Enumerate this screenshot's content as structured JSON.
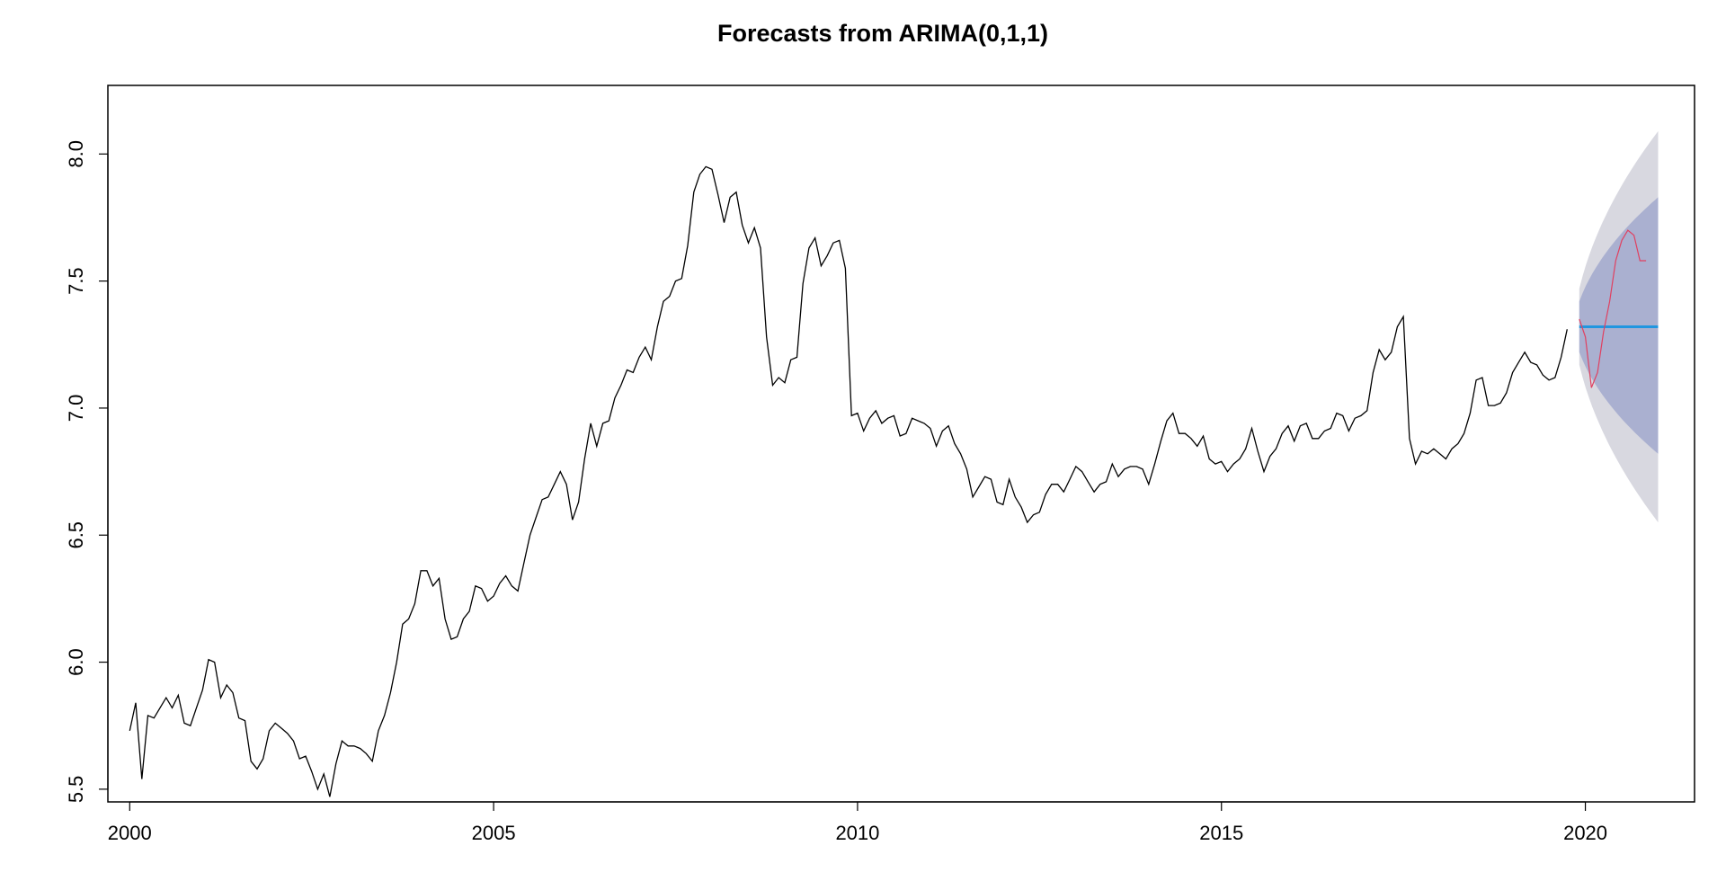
{
  "chart_data": {
    "type": "line",
    "title": "Forecasts from ARIMA(0,1,1)",
    "xlabel": "",
    "ylabel": "",
    "xlim": [
      1999.7,
      2021.5
    ],
    "ylim": [
      5.45,
      8.27
    ],
    "x_ticks": [
      2000,
      2005,
      2010,
      2015,
      2020
    ],
    "x_tick_labels": [
      "2000",
      "2005",
      "2010",
      "2015",
      "2020"
    ],
    "y_ticks": [
      5.5,
      6.0,
      6.5,
      7.0,
      7.5,
      8.0
    ],
    "y_tick_labels": [
      "5.5",
      "6.0",
      "6.5",
      "7.0",
      "7.5",
      "8.0"
    ],
    "grid": false,
    "frequency": 12,
    "series": [
      {
        "role": "observed",
        "color": "#000000",
        "start": 2000.0,
        "values": [
          5.73,
          5.84,
          5.54,
          5.79,
          5.78,
          5.82,
          5.86,
          5.82,
          5.87,
          5.76,
          5.75,
          5.82,
          5.89,
          6.01,
          6.0,
          5.86,
          5.91,
          5.88,
          5.78,
          5.77,
          5.61,
          5.58,
          5.62,
          5.73,
          5.76,
          5.74,
          5.72,
          5.69,
          5.62,
          5.63,
          5.57,
          5.5,
          5.56,
          5.47,
          5.6,
          5.69,
          5.67,
          5.67,
          5.66,
          5.64,
          5.61,
          5.73,
          5.79,
          5.88,
          6.0,
          6.15,
          6.17,
          6.23,
          6.36,
          6.36,
          6.3,
          6.33,
          6.17,
          6.09,
          6.1,
          6.17,
          6.2,
          6.3,
          6.29,
          6.24,
          6.26,
          6.31,
          6.34,
          6.3,
          6.28,
          6.39,
          6.5,
          6.57,
          6.64,
          6.65,
          6.7,
          6.75,
          6.7,
          6.56,
          6.63,
          6.8,
          6.94,
          6.85,
          6.94,
          6.95,
          7.04,
          7.09,
          7.15,
          7.14,
          7.2,
          7.24,
          7.19,
          7.32,
          7.42,
          7.44,
          7.5,
          7.51,
          7.64,
          7.85,
          7.92,
          7.95,
          7.94,
          7.84,
          7.73,
          7.83,
          7.85,
          7.72,
          7.65,
          7.71,
          7.63,
          7.28,
          7.09,
          7.12,
          7.1,
          7.19,
          7.2,
          7.49,
          7.63,
          7.67,
          7.56,
          7.6,
          7.65,
          7.66,
          7.55,
          6.97,
          6.98,
          6.91,
          6.96,
          6.99,
          6.94,
          6.96,
          6.97,
          6.89,
          6.9,
          6.96,
          6.95,
          6.94,
          6.92,
          6.85,
          6.91,
          6.93,
          6.86,
          6.82,
          6.76,
          6.65,
          6.69,
          6.73,
          6.72,
          6.63,
          6.62,
          6.72,
          6.65,
          6.61,
          6.55,
          6.58,
          6.59,
          6.66,
          6.7,
          6.7,
          6.67,
          6.72,
          6.77,
          6.75,
          6.71,
          6.67,
          6.7,
          6.71,
          6.78,
          6.73,
          6.76,
          6.77,
          6.77,
          6.76,
          6.7,
          6.78,
          6.87,
          6.95,
          6.98,
          6.9,
          6.9,
          6.88,
          6.85,
          6.89,
          6.8,
          6.78,
          6.79,
          6.75,
          6.78,
          6.8,
          6.84,
          6.92,
          6.83,
          6.75,
          6.81,
          6.84,
          6.9,
          6.93,
          6.87,
          6.93,
          6.94,
          6.88,
          6.88,
          6.91,
          6.92,
          6.98,
          6.97,
          6.91,
          6.96,
          6.97,
          6.99,
          7.14,
          7.23,
          7.19,
          7.22,
          7.32,
          7.36,
          6.88,
          6.78,
          6.83,
          6.82,
          6.84,
          6.82,
          6.8,
          6.84,
          6.86,
          6.9,
          6.98,
          7.11,
          7.12,
          7.01,
          7.01,
          7.02,
          7.06,
          7.14,
          7.18,
          7.22,
          7.18,
          7.17,
          7.13,
          7.11,
          7.12,
          7.2,
          7.31
        ]
      },
      {
        "role": "forecast-mean",
        "color": "#2196e0",
        "start": 2019.917,
        "end": 2021.0,
        "value": 7.32
      },
      {
        "role": "actual-holdout",
        "color": "#e04060",
        "start": 2019.917,
        "values": [
          7.35,
          7.28,
          7.08,
          7.14,
          7.3,
          7.42,
          7.58,
          7.66,
          7.7,
          7.68,
          7.58,
          7.58
        ]
      }
    ],
    "intervals": [
      {
        "level": "95%",
        "color": "#d8d8e0",
        "x": [
          2019.917,
          2021.0
        ],
        "lower": [
          7.17,
          6.55
        ],
        "upper": [
          7.47,
          8.09
        ]
      },
      {
        "level": "80%",
        "color": "#aab0d0",
        "x": [
          2019.917,
          2021.0
        ],
        "lower": [
          7.22,
          6.82
        ],
        "upper": [
          7.42,
          7.83
        ]
      }
    ]
  }
}
